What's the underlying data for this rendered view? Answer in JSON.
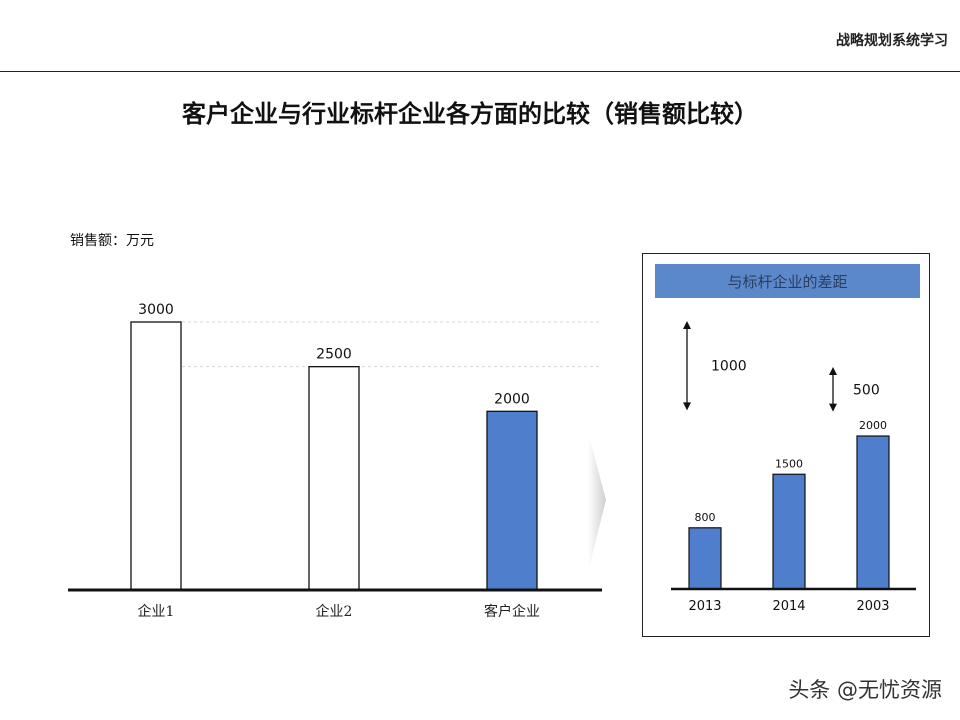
{
  "header": {
    "section_label": "战略规划系统学习"
  },
  "page_title": "客户企业与行业标杆企业各方面的比较（销售额比较）",
  "unit_label": "销售额：万元",
  "inset": {
    "title": "与标杆企业的差距",
    "gaps": [
      {
        "label": "1000",
        "value": 1000
      },
      {
        "label": "500",
        "value": 500
      }
    ]
  },
  "watermark": "头条 @无忧资源",
  "colors": {
    "highlight": "#4f7fcc",
    "inset_header": "#5b88c8",
    "outline": "#222222"
  },
  "chart_data": [
    {
      "type": "bar",
      "categories": [
        "企业1",
        "企业2",
        "客户企业"
      ],
      "values": [
        3000,
        2500,
        2000
      ],
      "data_labels": [
        "3000",
        "2500",
        "2000"
      ],
      "highlight_index": 2,
      "ylabel": "销售额：万元",
      "ylim": [
        0,
        3000
      ]
    },
    {
      "type": "bar",
      "title": "与标杆企业的差距",
      "categories": [
        "2013",
        "2014",
        "2003"
      ],
      "values": [
        800,
        1500,
        2000
      ],
      "data_labels": [
        "800",
        "1500",
        "2000"
      ],
      "ylim": [
        0,
        2000
      ]
    }
  ]
}
